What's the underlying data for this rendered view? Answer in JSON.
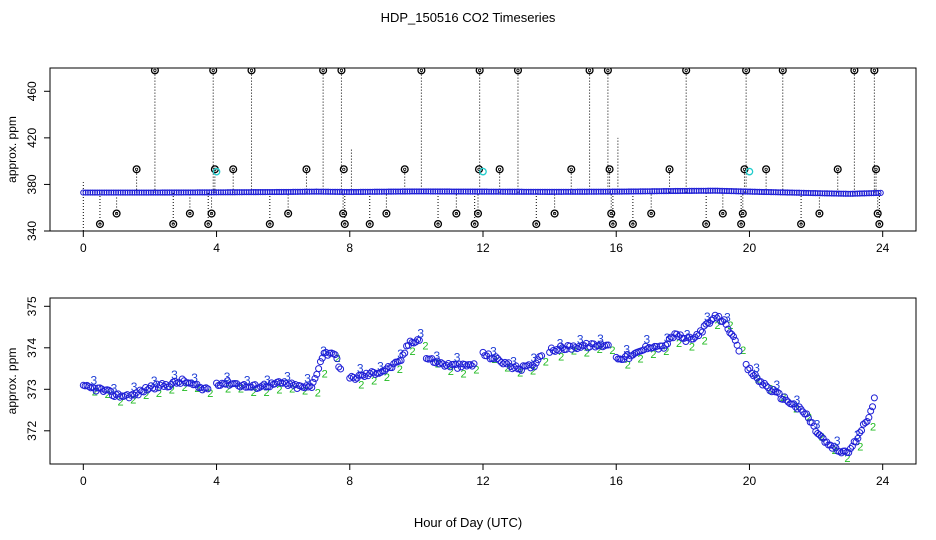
{
  "figure": {
    "title": "HDP_150516  CO2 Timeseries",
    "xlabel": "Hour of Day (UTC)"
  },
  "colors": {
    "frame": "#000000",
    "raw_marker": "#000000",
    "main_marker": "#1f1fd6",
    "alt_marker": "#22cccc",
    "label3": "#1f3fd6",
    "label2": "#22bb22"
  },
  "chart_data": [
    {
      "type": "scatter",
      "id": "top-panel",
      "ylabel": "approx. ppm",
      "xlim": [
        -1,
        25
      ],
      "ylim": [
        340,
        480
      ],
      "x_ticks": [
        0,
        4,
        8,
        12,
        16,
        20,
        24
      ],
      "y_ticks": [
        340,
        380,
        420,
        460
      ],
      "grid": false,
      "baseline": {
        "name": "",
        "points": [
          [
            0,
            373
          ],
          [
            2,
            373
          ],
          [
            4,
            373.2
          ],
          [
            6,
            373.5
          ],
          [
            7,
            373.8
          ],
          [
            8,
            373.5
          ],
          [
            10,
            374
          ],
          [
            12,
            373.8
          ],
          [
            14,
            373.6
          ],
          [
            16,
            373.8
          ],
          [
            18,
            374.4
          ],
          [
            19,
            374.6
          ],
          [
            20,
            373.8
          ],
          [
            22,
            372.5
          ],
          [
            23,
            371.9
          ],
          [
            24,
            372.8
          ]
        ]
      },
      "vertical_lines": [
        {
          "x": 0,
          "y0": 340,
          "y1": 382
        },
        {
          "x": 0.5,
          "y0": 346,
          "y1": 373
        },
        {
          "x": 1,
          "y0": 355,
          "y1": 373
        },
        {
          "x": 1.6,
          "y0": 373,
          "y1": 393
        },
        {
          "x": 2.15,
          "y0": 373,
          "y1": 478
        },
        {
          "x": 2.7,
          "y0": 346,
          "y1": 373
        },
        {
          "x": 3.2,
          "y0": 355,
          "y1": 373
        },
        {
          "x": 3.75,
          "y0": 346,
          "y1": 373
        },
        {
          "x": 3.85,
          "y0": 355,
          "y1": 373
        },
        {
          "x": 3.9,
          "y0": 373,
          "y1": 478
        },
        {
          "x": 3.95,
          "y0": 373,
          "y1": 393
        },
        {
          "x": 4.5,
          "y0": 373,
          "y1": 393
        },
        {
          "x": 5.05,
          "y0": 373,
          "y1": 478
        },
        {
          "x": 5.6,
          "y0": 346,
          "y1": 373
        },
        {
          "x": 6.15,
          "y0": 355,
          "y1": 373
        },
        {
          "x": 6.7,
          "y0": 373,
          "y1": 393
        },
        {
          "x": 7.2,
          "y0": 373,
          "y1": 478
        },
        {
          "x": 7.75,
          "y0": 373,
          "y1": 478
        },
        {
          "x": 7.8,
          "y0": 355,
          "y1": 373
        },
        {
          "x": 7.85,
          "y0": 346,
          "y1": 373
        },
        {
          "x": 8.05,
          "y0": 373,
          "y1": 410
        },
        {
          "x": 8.6,
          "y0": 346,
          "y1": 373
        },
        {
          "x": 9.1,
          "y0": 355,
          "y1": 373
        },
        {
          "x": 9.65,
          "y0": 373,
          "y1": 393
        },
        {
          "x": 10.15,
          "y0": 373,
          "y1": 478
        },
        {
          "x": 10.65,
          "y0": 346,
          "y1": 373
        },
        {
          "x": 11.2,
          "y0": 355,
          "y1": 373
        },
        {
          "x": 11.75,
          "y0": 346,
          "y1": 373
        },
        {
          "x": 11.85,
          "y0": 355,
          "y1": 373
        },
        {
          "x": 11.9,
          "y0": 373,
          "y1": 478
        },
        {
          "x": 12.5,
          "y0": 373,
          "y1": 393
        },
        {
          "x": 13.05,
          "y0": 373,
          "y1": 478
        },
        {
          "x": 13.6,
          "y0": 346,
          "y1": 373
        },
        {
          "x": 14.15,
          "y0": 355,
          "y1": 373
        },
        {
          "x": 14.65,
          "y0": 373,
          "y1": 393
        },
        {
          "x": 15.2,
          "y0": 373,
          "y1": 478
        },
        {
          "x": 15.75,
          "y0": 373,
          "y1": 478
        },
        {
          "x": 15.8,
          "y0": 373,
          "y1": 393
        },
        {
          "x": 15.85,
          "y0": 355,
          "y1": 373
        },
        {
          "x": 15.9,
          "y0": 346,
          "y1": 373
        },
        {
          "x": 16.05,
          "y0": 373,
          "y1": 420
        },
        {
          "x": 16.5,
          "y0": 346,
          "y1": 373
        },
        {
          "x": 17.05,
          "y0": 355,
          "y1": 373
        },
        {
          "x": 17.6,
          "y0": 373,
          "y1": 393
        },
        {
          "x": 18.1,
          "y0": 373,
          "y1": 478
        },
        {
          "x": 18.7,
          "y0": 346,
          "y1": 373
        },
        {
          "x": 19.2,
          "y0": 355,
          "y1": 373
        },
        {
          "x": 19.75,
          "y0": 346,
          "y1": 373
        },
        {
          "x": 19.8,
          "y0": 355,
          "y1": 373
        },
        {
          "x": 19.85,
          "y0": 373,
          "y1": 393
        },
        {
          "x": 19.9,
          "y0": 373,
          "y1": 478
        },
        {
          "x": 20.5,
          "y0": 373,
          "y1": 393
        },
        {
          "x": 21.0,
          "y0": 373,
          "y1": 478
        },
        {
          "x": 21.55,
          "y0": 346,
          "y1": 373
        },
        {
          "x": 22.1,
          "y0": 355,
          "y1": 373
        },
        {
          "x": 22.65,
          "y0": 373,
          "y1": 393
        },
        {
          "x": 23.15,
          "y0": 373,
          "y1": 478
        },
        {
          "x": 23.75,
          "y0": 373,
          "y1": 478
        },
        {
          "x": 23.8,
          "y0": 373,
          "y1": 393
        },
        {
          "x": 23.85,
          "y0": 355,
          "y1": 373
        },
        {
          "x": 23.9,
          "y0": 346,
          "y1": 373
        }
      ],
      "outliers": [
        {
          "x": 0.5,
          "y": 346
        },
        {
          "x": 1,
          "y": 355
        },
        {
          "x": 1.6,
          "y": 393
        },
        {
          "x": 2.15,
          "y": 478
        },
        {
          "x": 2.7,
          "y": 346
        },
        {
          "x": 3.2,
          "y": 355
        },
        {
          "x": 3.75,
          "y": 346
        },
        {
          "x": 3.85,
          "y": 355
        },
        {
          "x": 3.9,
          "y": 478
        },
        {
          "x": 3.95,
          "y": 393
        },
        {
          "x": 4.5,
          "y": 393
        },
        {
          "x": 5.05,
          "y": 478
        },
        {
          "x": 5.6,
          "y": 346
        },
        {
          "x": 6.15,
          "y": 355
        },
        {
          "x": 6.7,
          "y": 393
        },
        {
          "x": 7.2,
          "y": 478
        },
        {
          "x": 7.75,
          "y": 478
        },
        {
          "x": 7.8,
          "y": 355
        },
        {
          "x": 7.85,
          "y": 346
        },
        {
          "x": 7.82,
          "y": 393
        },
        {
          "x": 8.6,
          "y": 346
        },
        {
          "x": 9.1,
          "y": 355
        },
        {
          "x": 9.65,
          "y": 393
        },
        {
          "x": 10.15,
          "y": 478
        },
        {
          "x": 10.65,
          "y": 346
        },
        {
          "x": 11.2,
          "y": 355
        },
        {
          "x": 11.75,
          "y": 346
        },
        {
          "x": 11.85,
          "y": 355
        },
        {
          "x": 11.9,
          "y": 478
        },
        {
          "x": 11.88,
          "y": 393
        },
        {
          "x": 12.5,
          "y": 393
        },
        {
          "x": 13.05,
          "y": 478
        },
        {
          "x": 13.6,
          "y": 346
        },
        {
          "x": 14.15,
          "y": 355
        },
        {
          "x": 14.65,
          "y": 393
        },
        {
          "x": 15.2,
          "y": 478
        },
        {
          "x": 15.75,
          "y": 478
        },
        {
          "x": 15.8,
          "y": 393
        },
        {
          "x": 15.85,
          "y": 355
        },
        {
          "x": 15.9,
          "y": 346
        },
        {
          "x": 16.5,
          "y": 346
        },
        {
          "x": 17.05,
          "y": 355
        },
        {
          "x": 17.6,
          "y": 393
        },
        {
          "x": 18.1,
          "y": 478
        },
        {
          "x": 18.7,
          "y": 346
        },
        {
          "x": 19.2,
          "y": 355
        },
        {
          "x": 19.75,
          "y": 346
        },
        {
          "x": 19.8,
          "y": 355
        },
        {
          "x": 19.85,
          "y": 393
        },
        {
          "x": 19.9,
          "y": 478
        },
        {
          "x": 20.5,
          "y": 393
        },
        {
          "x": 21.0,
          "y": 478
        },
        {
          "x": 21.55,
          "y": 346
        },
        {
          "x": 22.1,
          "y": 355
        },
        {
          "x": 22.65,
          "y": 393
        },
        {
          "x": 23.15,
          "y": 478
        },
        {
          "x": 23.75,
          "y": 478
        },
        {
          "x": 23.8,
          "y": 393
        },
        {
          "x": 23.85,
          "y": 355
        },
        {
          "x": 23.9,
          "y": 346
        }
      ],
      "cyan_points": [
        {
          "x": 4.0,
          "y": 391
        },
        {
          "x": 12.0,
          "y": 391
        },
        {
          "x": 20.0,
          "y": 391
        }
      ]
    },
    {
      "type": "scatter",
      "id": "bottom-panel",
      "ylabel": "approx. ppm",
      "xlim": [
        -1,
        25
      ],
      "ylim": [
        371.2,
        375.2
      ],
      "x_ticks": [
        0,
        4,
        8,
        12,
        16,
        20,
        24
      ],
      "y_ticks": [
        372,
        373,
        374,
        375
      ],
      "grid": false,
      "segments": [
        {
          "points": [
            [
              0,
              373.05
            ],
            [
              0.5,
              373.0
            ],
            [
              1,
              372.85
            ],
            [
              1.5,
              372.85
            ],
            [
              2,
              373.05
            ],
            [
              2.5,
              373.1
            ],
            [
              3,
              373.2
            ],
            [
              3.6,
              373.0
            ],
            [
              3.75,
              373.05
            ]
          ]
        },
        {
          "points": [
            [
              4.0,
              373.15
            ],
            [
              4.5,
              373.15
            ],
            [
              5,
              373.05
            ],
            [
              5.5,
              373.1
            ],
            [
              6,
              373.15
            ],
            [
              6.5,
              373.05
            ],
            [
              6.9,
              373.05
            ]
          ]
        },
        {
          "points": [
            [
              6.9,
              373.15
            ],
            [
              7.2,
              373.85
            ],
            [
              7.5,
              373.9
            ],
            [
              7.75,
              373.45
            ]
          ]
        },
        {
          "points": [
            [
              8.0,
              373.25
            ],
            [
              8.5,
              373.35
            ],
            [
              9,
              373.45
            ],
            [
              9.5,
              373.65
            ],
            [
              9.8,
              374.15
            ],
            [
              10.1,
              374.2
            ]
          ]
        },
        {
          "points": [
            [
              10.3,
              373.75
            ],
            [
              10.8,
              373.6
            ],
            [
              11.3,
              373.55
            ],
            [
              11.75,
              373.6
            ]
          ]
        },
        {
          "points": [
            [
              12.0,
              373.85
            ],
            [
              12.5,
              373.7
            ],
            [
              13,
              373.5
            ],
            [
              13.5,
              373.55
            ],
            [
              13.8,
              373.9
            ]
          ]
        },
        {
          "points": [
            [
              14.0,
              373.95
            ],
            [
              14.5,
              374.0
            ],
            [
              15,
              374.05
            ],
            [
              15.5,
              374.05
            ],
            [
              15.8,
              374.1
            ]
          ]
        },
        {
          "points": [
            [
              16.0,
              373.75
            ],
            [
              16.5,
              373.8
            ],
            [
              17,
              374.05
            ],
            [
              17.4,
              374.0
            ],
            [
              17.8,
              374.35
            ],
            [
              18,
              374.2
            ],
            [
              18.3,
              374.2
            ],
            [
              18.6,
              374.45
            ],
            [
              19,
              374.75
            ],
            [
              19.3,
              374.6
            ],
            [
              19.7,
              373.9
            ]
          ]
        },
        {
          "points": [
            [
              19.9,
              373.55
            ],
            [
              20.3,
              373.2
            ],
            [
              20.8,
              372.9
            ],
            [
              21.2,
              372.7
            ],
            [
              21.7,
              372.4
            ],
            [
              22.0,
              372.0
            ],
            [
              22.3,
              371.7
            ],
            [
              22.7,
              371.5
            ],
            [
              23.0,
              371.5
            ],
            [
              23.3,
              371.9
            ],
            [
              23.6,
              372.4
            ],
            [
              23.75,
              372.75
            ]
          ]
        }
      ]
    }
  ]
}
